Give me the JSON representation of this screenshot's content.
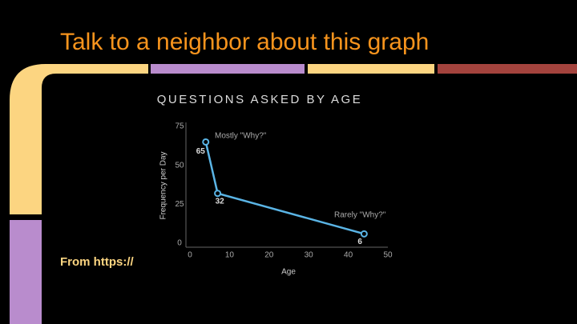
{
  "slide": {
    "title": "Talk to a neighbor about this graph",
    "footer": "From https://"
  },
  "chart_data": {
    "type": "line",
    "title": "QUESTIONS ASKED BY AGE",
    "x_label": "Age",
    "y_label": "Frequency per Day",
    "x": [
      4,
      7,
      44
    ],
    "values": [
      65,
      32,
      6
    ],
    "color": "#5ab4e5",
    "annotations": [
      "Mostly \"Why?\"",
      "Rarely \"Why?\""
    ],
    "xlim": [
      0,
      50
    ],
    "xticks": [
      0,
      10,
      20,
      30,
      40,
      50
    ],
    "ylim": [
      0,
      75
    ],
    "yticks": [
      0,
      25,
      50,
      75
    ]
  }
}
